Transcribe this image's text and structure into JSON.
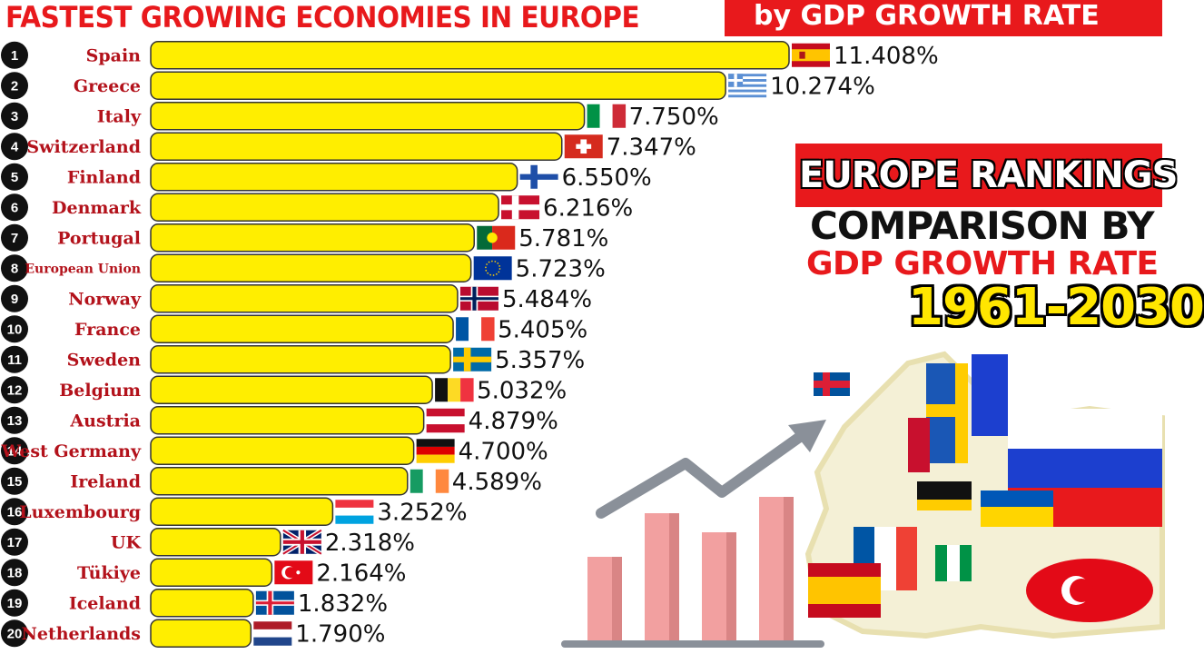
{
  "header": {
    "title": "FASTEST GROWING ECONOMIES IN EUROPE",
    "subtitle": "by GDP GROWTH RATE"
  },
  "promo": {
    "line1": "EUROPE RANKINGS",
    "line2": "COMPARISON BY",
    "line3": "GDP GROWTH RATE",
    "line4": "1961-2030"
  },
  "colors": {
    "accent": "#e8191c",
    "bar": "#ffee00",
    "bar_border": "#333333",
    "label": "#b3121b",
    "year_fill": "#ffe600",
    "deco_bar": "#f2a0a0",
    "deco_arrow": "#8a9099"
  },
  "chart_data": {
    "type": "bar",
    "orientation": "horizontal",
    "value_suffix": "%",
    "data": [
      {
        "rank": "1",
        "country": "Spain",
        "value": 11.408,
        "label": "11.408%",
        "flag": "spain-flag"
      },
      {
        "rank": "2",
        "country": "Greece",
        "value": 10.274,
        "label": "10.274%",
        "flag": "greece-flag"
      },
      {
        "rank": "3",
        "country": "Italy",
        "value": 7.75,
        "label": "7.750%",
        "flag": "italy-flag"
      },
      {
        "rank": "4",
        "country": "Switzerland",
        "value": 7.347,
        "label": "7.347%",
        "flag": "switzerland-flag"
      },
      {
        "rank": "5",
        "country": "Finland",
        "value": 6.55,
        "label": "6.550%",
        "flag": "finland-flag"
      },
      {
        "rank": "6",
        "country": "Denmark",
        "value": 6.216,
        "label": "6.216%",
        "flag": "denmark-flag"
      },
      {
        "rank": "7",
        "country": "Portugal",
        "value": 5.781,
        "label": "5.781%",
        "flag": "portugal-flag"
      },
      {
        "rank": "8",
        "country": "European Union",
        "value": 5.723,
        "label": "5.723%",
        "flag": "eu-flag"
      },
      {
        "rank": "9",
        "country": "Norway",
        "value": 5.484,
        "label": "5.484%",
        "flag": "norway-flag"
      },
      {
        "rank": "10",
        "country": "France",
        "value": 5.405,
        "label": "5.405%",
        "flag": "france-flag"
      },
      {
        "rank": "11",
        "country": "Sweden",
        "value": 5.357,
        "label": "5.357%",
        "flag": "sweden-flag"
      },
      {
        "rank": "12",
        "country": "Belgium",
        "value": 5.032,
        "label": "5.032%",
        "flag": "belgium-flag"
      },
      {
        "rank": "13",
        "country": "Austria",
        "value": 4.879,
        "label": "4.879%",
        "flag": "austria-flag"
      },
      {
        "rank": "14",
        "country": "West Germany",
        "value": 4.7,
        "label": "4.700%",
        "flag": "west-germany-flag"
      },
      {
        "rank": "15",
        "country": "Ireland",
        "value": 4.589,
        "label": "4.589%",
        "flag": "ireland-flag"
      },
      {
        "rank": "16",
        "country": "Luxembourg",
        "value": 3.252,
        "label": "3.252%",
        "flag": "luxembourg-flag"
      },
      {
        "rank": "17",
        "country": "UK",
        "value": 2.318,
        "label": "2.318%",
        "flag": "uk-flag"
      },
      {
        "rank": "18",
        "country": "Tükiye",
        "value": 2.164,
        "label": "2.164%",
        "flag": "turkey-flag"
      },
      {
        "rank": "19",
        "country": "Iceland",
        "value": 1.832,
        "label": "1.832%",
        "flag": "iceland-flag"
      },
      {
        "rank": "20",
        "country": "Netherlands",
        "value": 1.79,
        "label": "1.790%",
        "flag": "netherlands-flag"
      }
    ]
  }
}
